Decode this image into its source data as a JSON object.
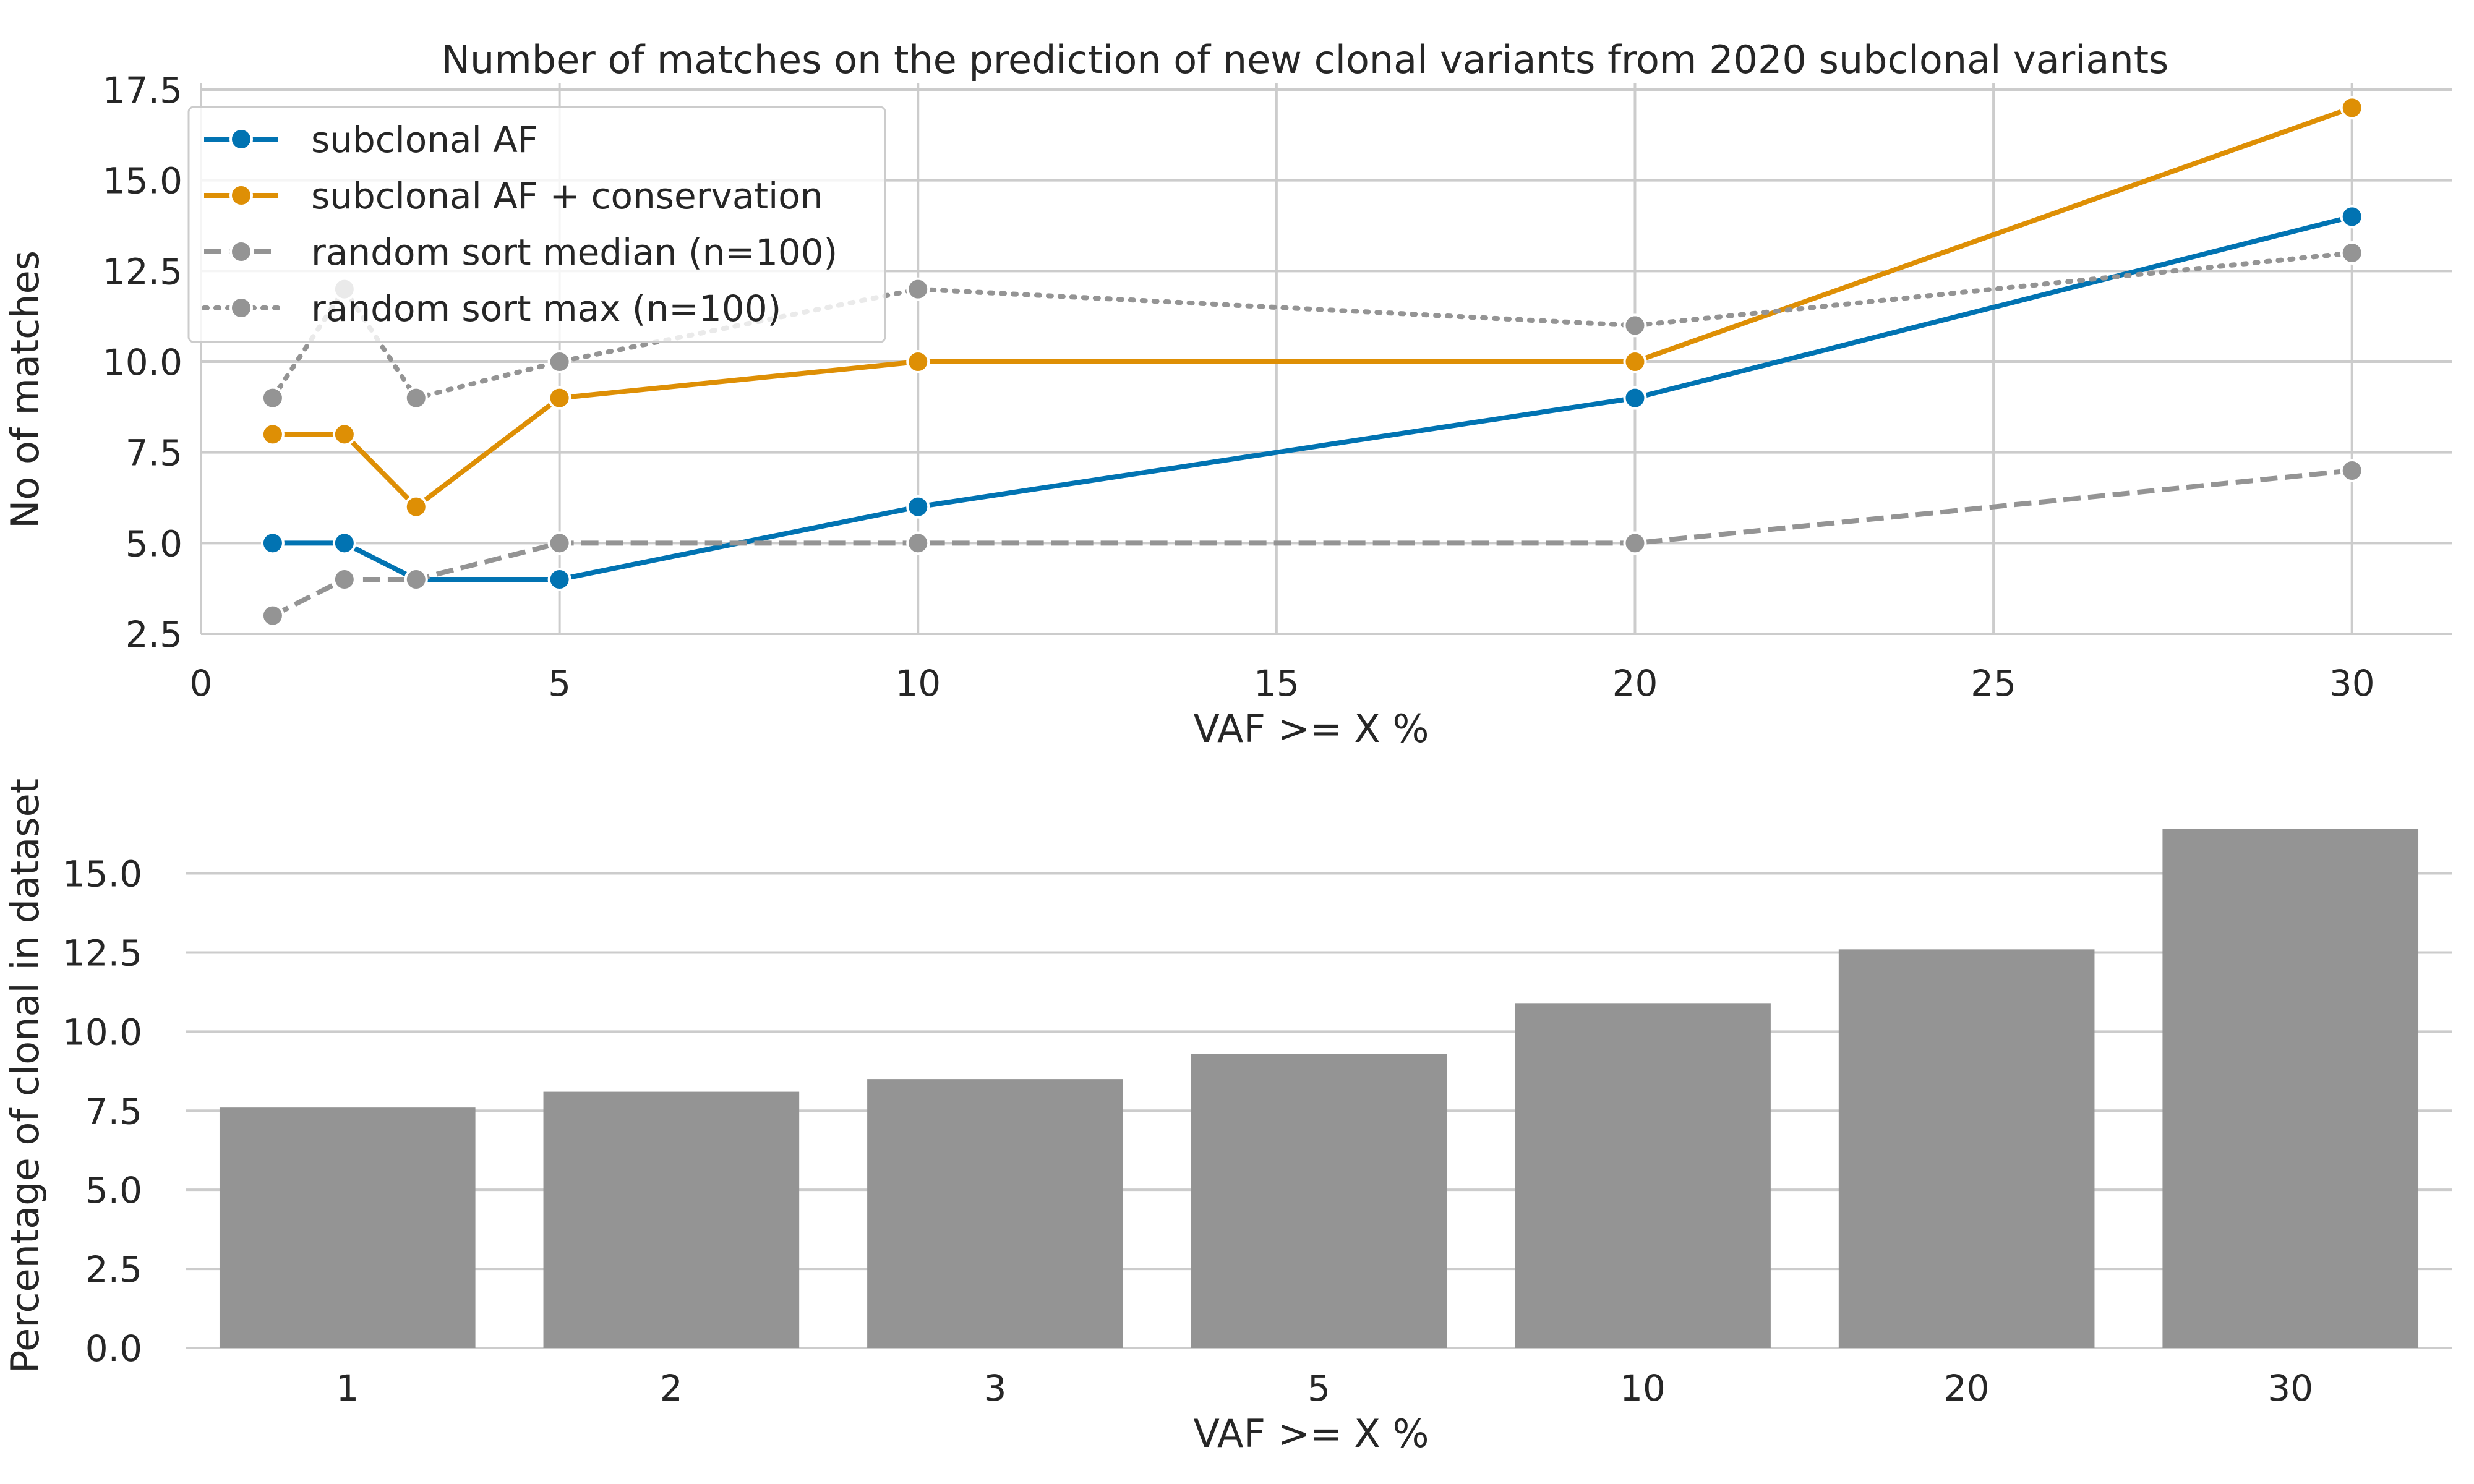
{
  "chart_data": [
    {
      "type": "line",
      "title": "Number of matches on the prediction of new clonal variants from 2020 subclonal variants",
      "xlabel": "VAF >= X %",
      "ylabel": "No of matches",
      "x": [
        1,
        2,
        3,
        5,
        10,
        20,
        30
      ],
      "xlim": [
        0,
        31.4
      ],
      "ylim": [
        2.5,
        17.5
      ],
      "xticks": [
        "0",
        "5",
        "10",
        "15",
        "20",
        "25",
        "30"
      ],
      "yticks": [
        "2.5",
        "5.0",
        "7.5",
        "10.0",
        "12.5",
        "15.0",
        "17.5"
      ],
      "grid": true,
      "legend": "top-left",
      "series": [
        {
          "name": "subclonal AF",
          "values": [
            5,
            5,
            4,
            4,
            6,
            9,
            14
          ],
          "color": "#0173b2",
          "style": "solid"
        },
        {
          "name": "subclonal AF + conservation",
          "values": [
            8,
            8,
            6,
            9,
            10,
            10,
            17
          ],
          "color": "#de8f05",
          "style": "solid"
        },
        {
          "name": "random sort median (n=100)",
          "values": [
            3,
            4,
            4,
            5,
            5,
            5,
            7
          ],
          "color": "#949494",
          "style": "dashed"
        },
        {
          "name": "random sort max (n=100)",
          "values": [
            9,
            12,
            9,
            10,
            12,
            11,
            13
          ],
          "color": "#949494",
          "style": "dotted"
        }
      ]
    },
    {
      "type": "bar",
      "xlabel": "VAF >= X %",
      "ylabel": "Percentage of clonal in dataset",
      "categories": [
        "1",
        "2",
        "3",
        "5",
        "10",
        "20",
        "30"
      ],
      "values": [
        7.6,
        8.1,
        8.5,
        9.3,
        10.9,
        12.6,
        16.4
      ],
      "ylim": [
        0,
        17.2
      ],
      "yticks": [
        "0.0",
        "2.5",
        "5.0",
        "7.5",
        "10.0",
        "12.5",
        "15.0"
      ],
      "grid": true,
      "color": "#949494"
    }
  ]
}
